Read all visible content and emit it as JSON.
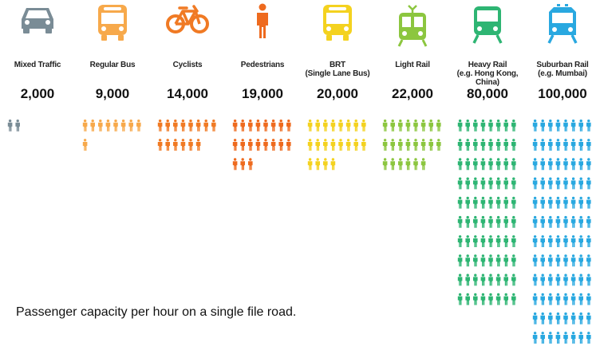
{
  "chart_data": {
    "type": "pictogram",
    "title": "",
    "xlabel": "",
    "ylabel": "",
    "categories": [
      {
        "name": "Mixed Traffic",
        "subtitle": "",
        "value": 2000,
        "value_label": "2,000",
        "color": "#7a8c96",
        "icon": "car-icon"
      },
      {
        "name": "Regular Bus",
        "subtitle": "",
        "value": 9000,
        "value_label": "9,000",
        "color": "#f7a94b",
        "icon": "bus-icon"
      },
      {
        "name": "Cyclists",
        "subtitle": "",
        "value": 14000,
        "value_label": "14,000",
        "color": "#f07a24",
        "icon": "bicycle-icon"
      },
      {
        "name": "Pedestrians",
        "subtitle": "",
        "value": 19000,
        "value_label": "19,000",
        "color": "#ee6a1e",
        "icon": "pedestrian-icon"
      },
      {
        "name": "BRT",
        "subtitle": "(Single Lane Bus)",
        "value": 20000,
        "value_label": "20,000",
        "color": "#f4d21f",
        "icon": "brt-bus-icon"
      },
      {
        "name": "Light Rail",
        "subtitle": "",
        "value": 22000,
        "value_label": "22,000",
        "color": "#8cc63f",
        "icon": "light-rail-icon"
      },
      {
        "name": "Heavy Rail",
        "subtitle": "(e.g. Hong Kong, China)",
        "value": 80000,
        "value_label": "80,000",
        "color": "#2eb573",
        "icon": "heavy-rail-icon"
      },
      {
        "name": "Suburban Rail",
        "subtitle": "(e.g. Mumbai)",
        "value": 100000,
        "value_label": "100,000",
        "color": "#29a8e0",
        "icon": "suburban-rail-icon"
      }
    ],
    "unit_per_figure": 1000,
    "figures_per_row": 8
  },
  "caption": "Passenger capacity per hour on a single file road."
}
